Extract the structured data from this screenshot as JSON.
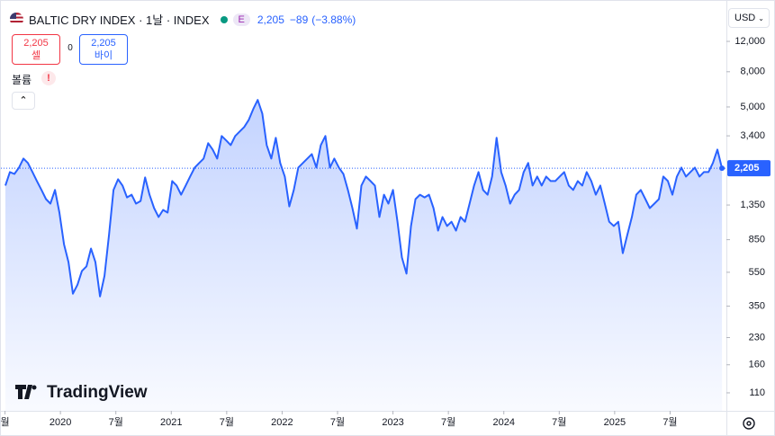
{
  "header": {
    "title": "BALTIC DRY INDEX · 1날 · INDEX",
    "exchange_badge": "E",
    "price": "2,205",
    "change": "−89",
    "change_pct": "(−3.88%)",
    "sell_price": "2,205",
    "sell_label": "셀",
    "spread": "0",
    "buy_price": "2,205",
    "buy_label": "바이",
    "volume_label": "볼륨",
    "volume_alert": "!",
    "currency": "USD",
    "logo": "TradingView"
  },
  "chart_data": {
    "type": "area",
    "color": "#2962ff",
    "log_scale": true,
    "grid": false,
    "last_value": {
      "value": 2205,
      "label": "2,205"
    },
    "x": [
      2019.504,
      2019.544,
      2019.585,
      2019.626,
      2019.666,
      2019.707,
      2019.748,
      2019.788,
      2019.829,
      2019.87,
      2019.91,
      2019.951,
      2019.991,
      2020.032,
      2020.073,
      2020.113,
      2020.154,
      2020.194,
      2020.235,
      2020.276,
      2020.316,
      2020.357,
      2020.398,
      2020.438,
      2020.479,
      2020.52,
      2020.56,
      2020.601,
      2020.642,
      2020.682,
      2020.723,
      2020.764,
      2020.804,
      2020.845,
      2020.886,
      2020.926,
      2020.967,
      2021.008,
      2021.048,
      2021.089,
      2021.13,
      2021.17,
      2021.211,
      2021.252,
      2021.292,
      2021.333,
      2021.374,
      2021.414,
      2021.455,
      2021.496,
      2021.536,
      2021.577,
      2021.618,
      2021.658,
      2021.699,
      2021.74,
      2021.78,
      2021.821,
      2021.861,
      2021.902,
      2021.943,
      2021.983,
      2022.024,
      2022.065,
      2022.105,
      2022.146,
      2022.187,
      2022.227,
      2022.268,
      2022.309,
      2022.349,
      2022.39,
      2022.431,
      2022.471,
      2022.512,
      2022.553,
      2022.593,
      2022.634,
      2022.675,
      2022.715,
      2022.756,
      2022.797,
      2022.837,
      2022.878,
      2022.919,
      2022.959,
      2023.0,
      2023.041,
      2023.081,
      2023.122,
      2023.163,
      2023.203,
      2023.244,
      2023.285,
      2023.325,
      2023.366,
      2023.407,
      2023.447,
      2023.488,
      2023.528,
      2023.569,
      2023.61,
      2023.65,
      2023.691,
      2023.732,
      2023.772,
      2023.813,
      2023.854,
      2023.894,
      2023.935,
      2023.976,
      2024.016,
      2024.057,
      2024.098,
      2024.138,
      2024.179,
      2024.22,
      2024.26,
      2024.301,
      2024.342,
      2024.382,
      2024.423,
      2024.464,
      2024.504,
      2024.545,
      2024.586,
      2024.626,
      2024.667,
      2024.708,
      2024.748,
      2024.789,
      2024.83,
      2024.87,
      2024.911,
      2024.951,
      2024.992,
      2025.033,
      2025.073,
      2025.114,
      2025.155,
      2025.195,
      2025.236,
      2025.277,
      2025.317,
      2025.358,
      2025.399,
      2025.439,
      2025.48,
      2025.521,
      2025.561,
      2025.602,
      2025.643,
      2025.683,
      2025.724,
      2025.765,
      2025.805,
      2025.846,
      2025.886,
      2025.927,
      2025.968
    ],
    "values": [
      1750,
      2095,
      2045,
      2225,
      2510,
      2365,
      2095,
      1860,
      1650,
      1460,
      1375,
      1650,
      1220,
      800,
      630,
      413,
      466,
      560,
      595,
      755,
      630,
      398,
      525,
      905,
      1650,
      1905,
      1750,
      1495,
      1550,
      1375,
      1425,
      1950,
      1550,
      1295,
      1150,
      1265,
      1220,
      1860,
      1750,
      1550,
      1750,
      1975,
      2225,
      2365,
      2510,
      3080,
      2830,
      2510,
      3390,
      3195,
      3005,
      3390,
      3605,
      3825,
      4210,
      4866,
      5490,
      4580,
      3005,
      2510,
      3310,
      2365,
      1975,
      1325,
      1650,
      2225,
      2365,
      2510,
      2665,
      2225,
      3005,
      3390,
      2225,
      2510,
      2225,
      2045,
      1650,
      1295,
      985,
      1750,
      1975,
      1860,
      1750,
      1150,
      1550,
      1375,
      1650,
      1080,
      670,
      540,
      1020,
      1460,
      1550,
      1495,
      1550,
      1295,
      960,
      1150,
      1020,
      1080,
      960,
      1150,
      1080,
      1375,
      1750,
      2095,
      1650,
      1550,
      1975,
      3310,
      2095,
      1750,
      1375,
      1550,
      1650,
      2095,
      2365,
      1750,
      1975,
      1750,
      1975,
      1860,
      1860,
      1975,
      2095,
      1750,
      1650,
      1860,
      1750,
      2095,
      1860,
      1550,
      1750,
      1375,
      1080,
      1020,
      1080,
      710,
      905,
      1150,
      1550,
      1650,
      1460,
      1295,
      1375,
      1460,
      1975,
      1860,
      1550,
      1975,
      2225,
      1975,
      2095,
      2225,
      1975,
      2095,
      2095,
      2365,
      2830,
      2205
    ],
    "xlim": [
      2019.463,
      2026.008
    ],
    "xticks": [
      {
        "value": 2019.5,
        "label": "월"
      },
      2020,
      {
        "value": 2020.5,
        "label": "7월"
      },
      2021,
      {
        "value": 2021.5,
        "label": "7월"
      },
      2022,
      {
        "value": 2022.5,
        "label": "7월"
      },
      2023,
      {
        "value": 2023.5,
        "label": "7월"
      },
      2024,
      {
        "value": 2024.5,
        "label": "7월"
      },
      2025,
      {
        "value": 2025.5,
        "label": "7월"
      }
    ],
    "ylim": [
      86.5,
      20600
    ],
    "yticks": [
      {
        "value": 12000,
        "label": "12,000"
      },
      {
        "value": 8000,
        "label": "8,000"
      },
      {
        "value": 5000,
        "label": "5,000"
      },
      {
        "value": 3400,
        "label": "3,400"
      },
      {
        "value": 1350,
        "label": "1,350"
      },
      850,
      550,
      350,
      230,
      160,
      110
    ]
  }
}
